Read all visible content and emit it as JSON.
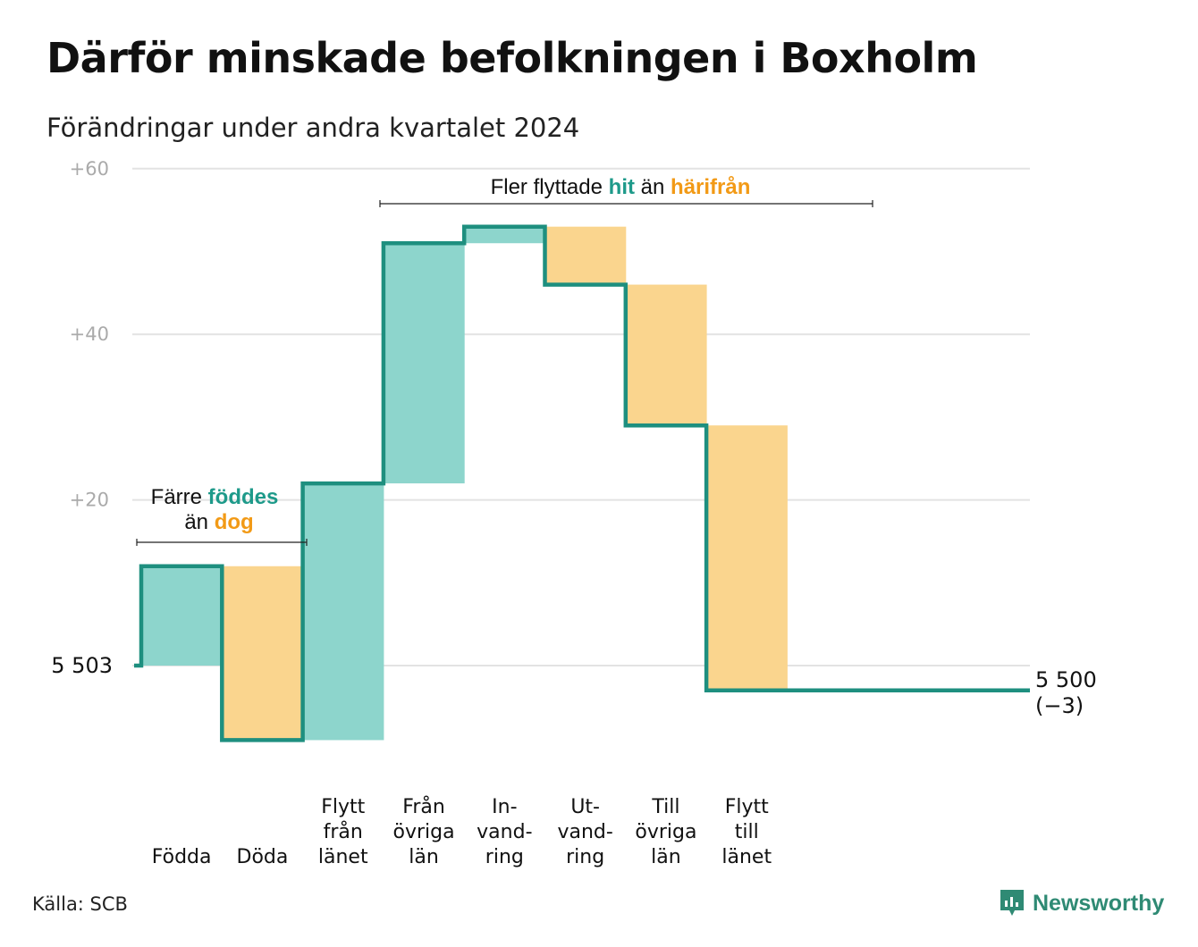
{
  "title": "Därför minskade befolkningen i Boxholm",
  "subtitle": "Förändringar under andra kvartalet 2024",
  "source": "Källa: SCB",
  "brand": "Newsworthy",
  "colors": {
    "increase": "#8dd5cc",
    "decrease": "#fad58e",
    "line": "#1e8f7f",
    "accent_teal": "#1e9a8a",
    "accent_orange": "#f29a16"
  },
  "annotations": {
    "births_deaths": {
      "line1_a": "Färre",
      "line1_b": "föddes",
      "line2_a": "än",
      "line2_b": "dog"
    },
    "migration": {
      "part_a": "Fler flyttade",
      "part_b": "hit",
      "part_c": "än",
      "part_d": "härifrån"
    }
  },
  "chart_data": {
    "type": "waterfall",
    "start_label": "5 503",
    "end_label": "5 500",
    "end_change_label": "(−3)",
    "start_value": 5503,
    "end_value": 5500,
    "y_ticks": [
      "+20",
      "+40",
      "+60"
    ],
    "ylim_change": [
      -11,
      60
    ],
    "categories": [
      {
        "label_lines": [
          "Födda"
        ],
        "change": 12
      },
      {
        "label_lines": [
          "Döda"
        ],
        "change": -21
      },
      {
        "label_lines": [
          "Flytt",
          "från",
          "länet"
        ],
        "change": 31
      },
      {
        "label_lines": [
          "Från",
          "övriga",
          "län"
        ],
        "change": 29
      },
      {
        "label_lines": [
          "In-",
          "vand-",
          "ring"
        ],
        "change": 2
      },
      {
        "label_lines": [
          "Ut-",
          "vand-",
          "ring"
        ],
        "change": -7
      },
      {
        "label_lines": [
          "Till",
          "övriga",
          "län"
        ],
        "change": -17
      },
      {
        "label_lines": [
          "Flytt",
          "till",
          "länet"
        ],
        "change": -32
      }
    ]
  }
}
